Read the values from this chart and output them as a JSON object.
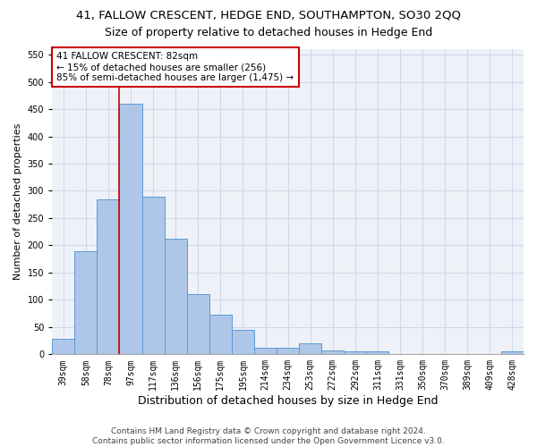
{
  "title_line1": "41, FALLOW CRESCENT, HEDGE END, SOUTHAMPTON, SO30 2QQ",
  "title_line2": "Size of property relative to detached houses in Hedge End",
  "xlabel": "Distribution of detached houses by size in Hedge End",
  "ylabel": "Number of detached properties",
  "categories": [
    "39sqm",
    "58sqm",
    "78sqm",
    "97sqm",
    "117sqm",
    "136sqm",
    "156sqm",
    "175sqm",
    "195sqm",
    "214sqm",
    "234sqm",
    "253sqm",
    "272sqm",
    "292sqm",
    "311sqm",
    "331sqm",
    "350sqm",
    "370sqm",
    "389sqm",
    "409sqm",
    "428sqm"
  ],
  "values": [
    28,
    190,
    285,
    460,
    290,
    213,
    110,
    73,
    45,
    12,
    12,
    20,
    7,
    5,
    5,
    0,
    0,
    0,
    0,
    0,
    5
  ],
  "bar_color": "#aec6e8",
  "bar_edge_color": "#5b9bd5",
  "vline_x_index": 2.5,
  "vline_color": "#cc0000",
  "annotation_text": "41 FALLOW CRESCENT: 82sqm\n← 15% of detached houses are smaller (256)\n85% of semi-detached houses are larger (1,475) →",
  "annotation_box_color": "#ffffff",
  "annotation_box_edge_color": "#cc0000",
  "ylim": [
    0,
    560
  ],
  "yticks": [
    0,
    50,
    100,
    150,
    200,
    250,
    300,
    350,
    400,
    450,
    500,
    550
  ],
  "grid_color": "#d0d8e8",
  "bg_color": "#eef2f8",
  "footer_text": "Contains HM Land Registry data © Crown copyright and database right 2024.\nContains public sector information licensed under the Open Government Licence v3.0.",
  "title1_fontsize": 9.5,
  "title2_fontsize": 9,
  "xlabel_fontsize": 9,
  "ylabel_fontsize": 8,
  "tick_fontsize": 7,
  "annotation_fontsize": 7.5,
  "footer_fontsize": 6.5
}
